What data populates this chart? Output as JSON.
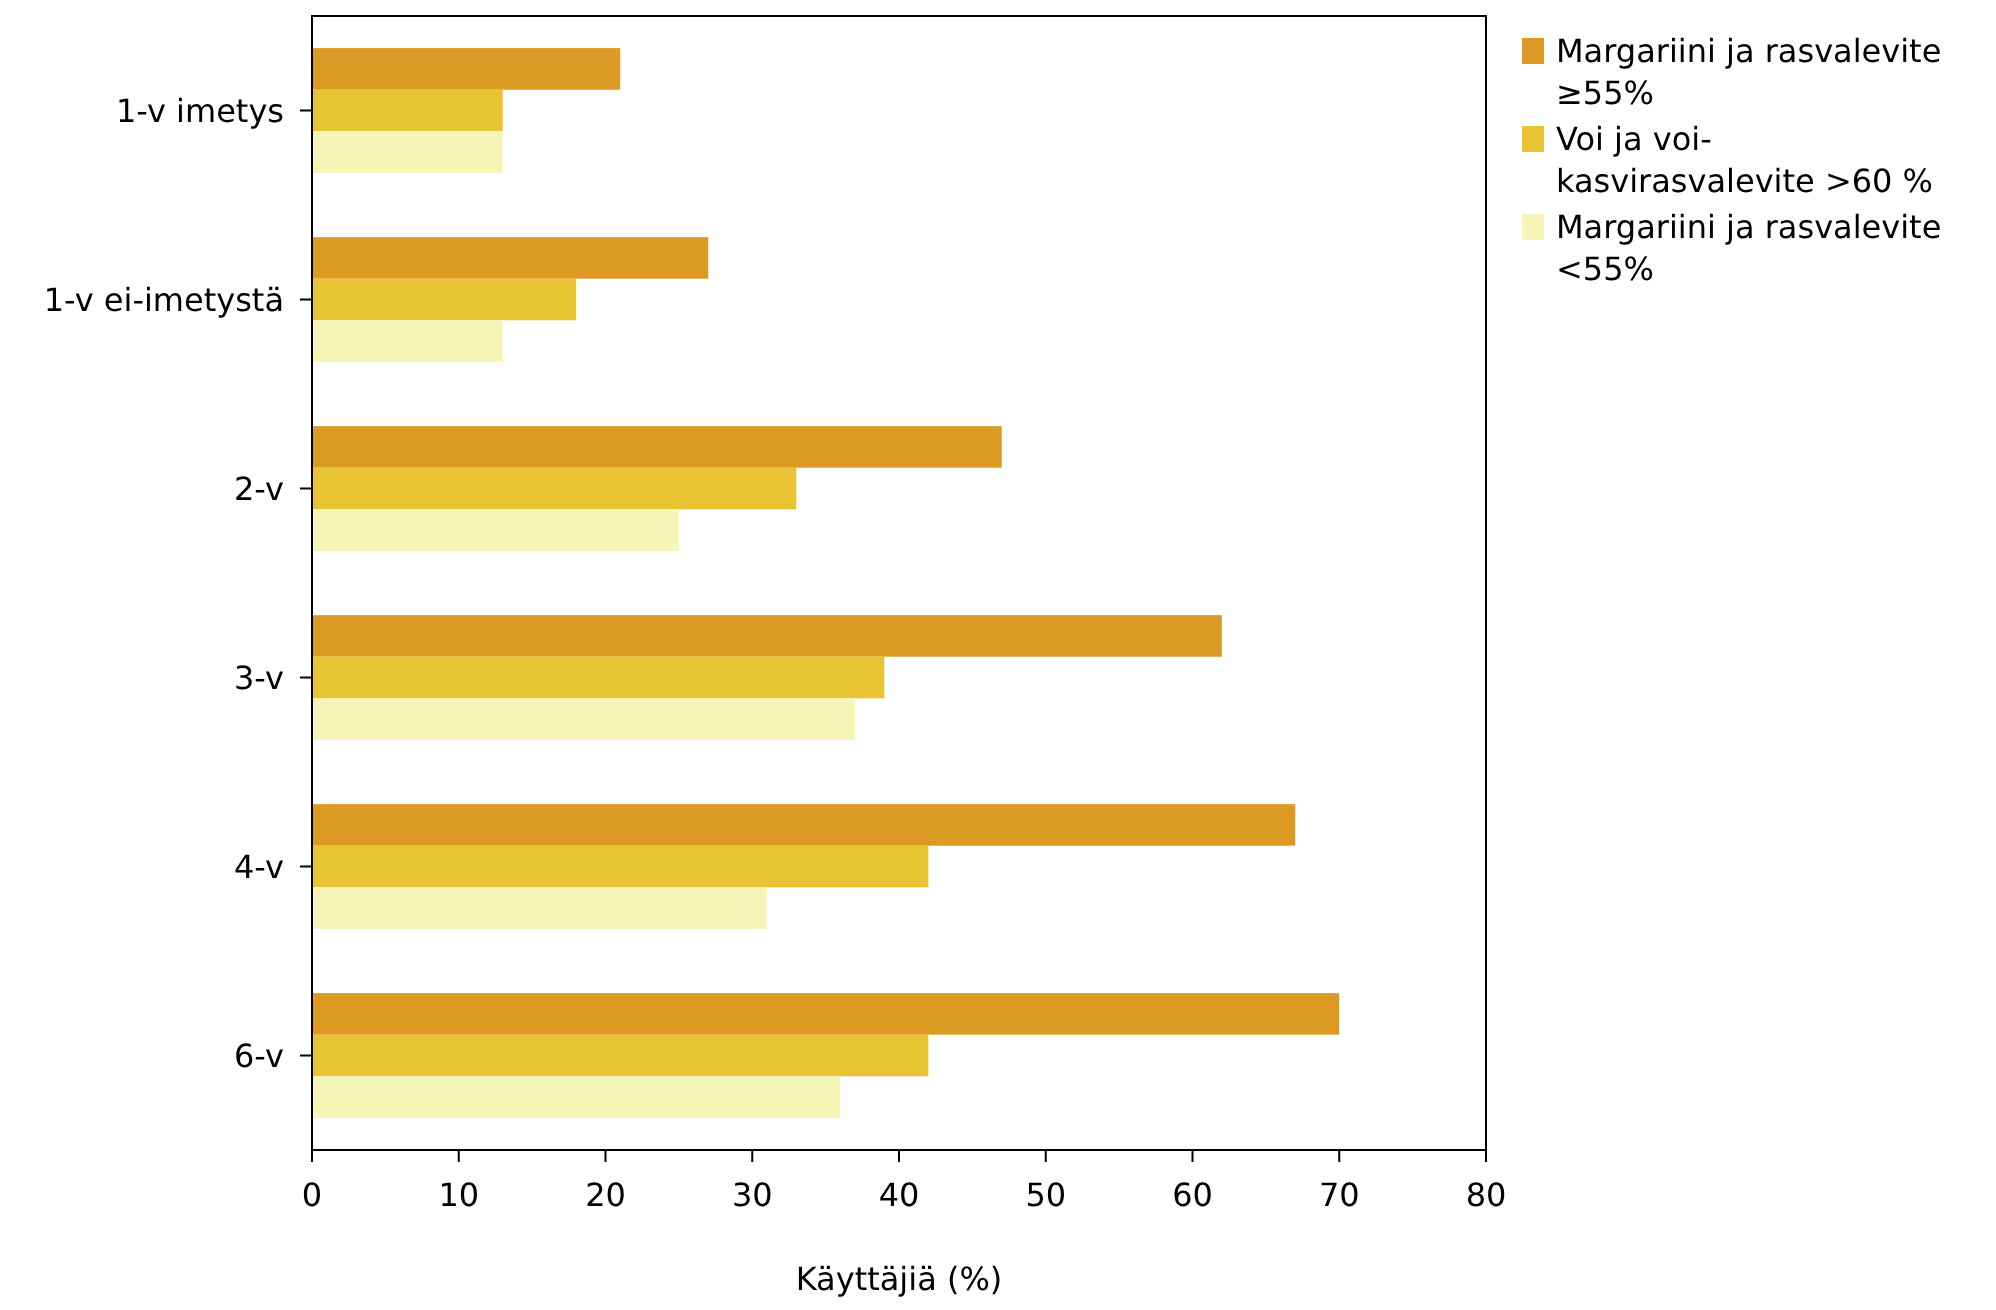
{
  "chart_data": {
    "type": "bar",
    "orientation": "horizontal",
    "xlabel": "Käyttäjiä (%)",
    "categories": [
      "1-v imetys",
      "1-v ei-imetystä",
      "2-v",
      "3-v",
      "4-v",
      "6-v"
    ],
    "series": [
      {
        "name": "Margariini ja rasvalevite ≥55%",
        "color": "#dc9a25",
        "values": [
          21,
          27,
          47,
          62,
          67,
          70
        ]
      },
      {
        "name": "Voi ja voi-kasvirasvalevite >60 %",
        "color": "#e8c333",
        "values": [
          13,
          18,
          33,
          39,
          42,
          42
        ]
      },
      {
        "name": "Margariini ja rasvalevite <55%",
        "color": "#f6f4b6",
        "values": [
          13,
          13,
          25,
          37,
          31,
          36
        ]
      }
    ],
    "xlim": [
      0,
      80
    ],
    "xticks": [
      0,
      10,
      20,
      30,
      40,
      50,
      60,
      70,
      80
    ],
    "grid": false,
    "legend": "top right"
  }
}
